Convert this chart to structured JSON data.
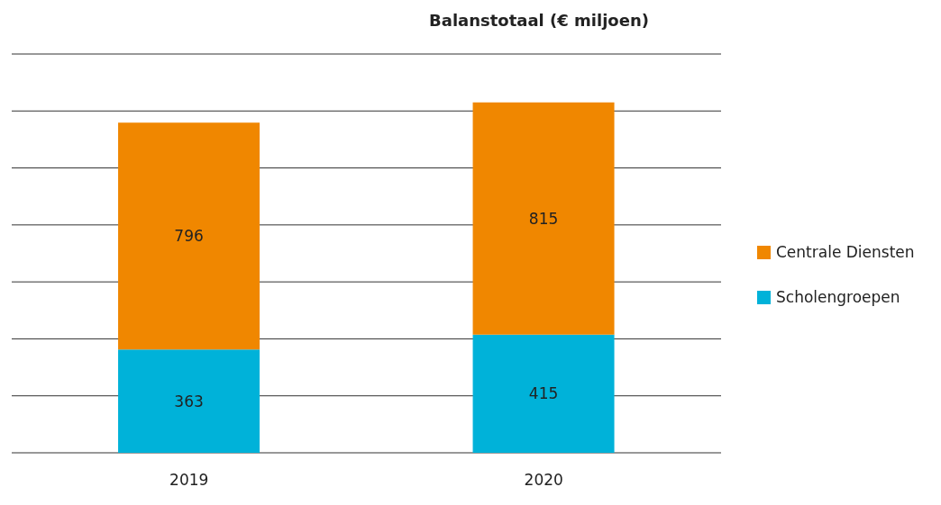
{
  "chart_data": {
    "type": "bar",
    "title": "Balanstotaal (€ miljoen)",
    "categories": [
      "2019",
      "2020"
    ],
    "stacked": true,
    "series": [
      {
        "name": "Scholengroepen",
        "color": "#00b2d9",
        "values": [
          363,
          415
        ]
      },
      {
        "name": "Centrale Diensten",
        "color": "#f08700",
        "values": [
          796,
          815
        ]
      }
    ],
    "grid": "y",
    "tick_labels": "x",
    "legend": "right",
    "data_labels": true
  }
}
